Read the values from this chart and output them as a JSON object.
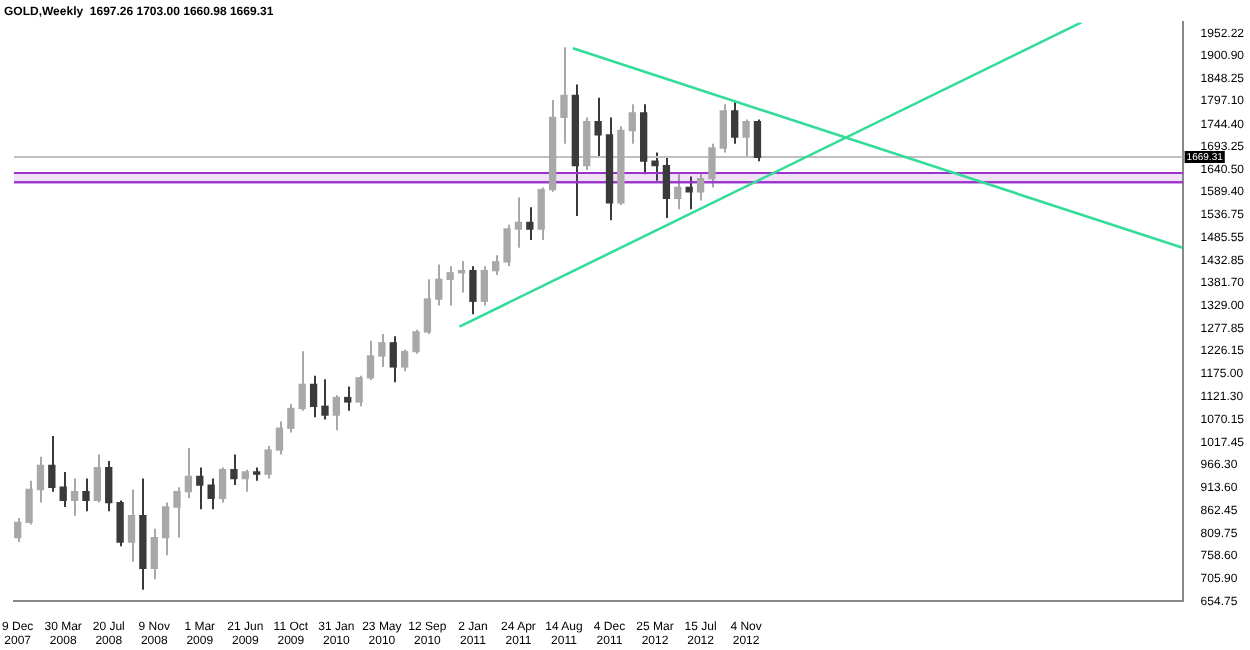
{
  "chart_data": {
    "type": "candlestick",
    "title": "GOLD,Weekly  1697.26 1703.00 1660.98 1669.31",
    "colors": [
      "#a8a8a8",
      "#a8a8a8",
      "#a8a8a8",
      "#3a3a3a",
      "#3a3a3a",
      "#a8a8a8",
      "#3a3a3a",
      "#a8a8a8",
      "#3a3a3a",
      "#3a3a3a",
      "#a8a8a8",
      "#3a3a3a",
      "#a8a8a8",
      "#a8a8a8",
      "#a8a8a8",
      "#a8a8a8",
      "#3a3a3a",
      "#3a3a3a",
      "#a8a8a8",
      "#3a3a3a",
      "#a8a8a8",
      "#3a3a3a",
      "#a8a8a8",
      "#a8a8a8",
      "#a8a8a8",
      "#a8a8a8",
      "#3a3a3a",
      "#3a3a3a",
      "#a8a8a8",
      "#3a3a3a",
      "#a8a8a8",
      "#a8a8a8",
      "#a8a8a8",
      "#3a3a3a",
      "#a8a8a8",
      "#a8a8a8",
      "#a8a8a8",
      "#a8a8a8",
      "#a8a8a8",
      "#a8a8a8",
      "#3a3a3a",
      "#a8a8a8",
      "#a8a8a8",
      "#a8a8a8",
      "#a8a8a8",
      "#3a3a3a",
      "#a8a8a8",
      "#a8a8a8",
      "#a8a8a8",
      "#3a3a3a",
      "#a8a8a8",
      "#3a3a3a",
      "#3a3a3a",
      "#a8a8a8",
      "#a8a8a8",
      "#3a3a3a",
      "#3a3a3a",
      "#3a3a3a",
      "#a8a8a8",
      "#3a3a3a",
      "#a8a8a8",
      "#a8a8a8",
      "#a8a8a8",
      "#3a3a3a",
      "#a8a8a8",
      "#3a3a3a"
    ],
    "x": [
      "2007-12-09",
      "2008-01-06",
      "2008-02-03",
      "2008-03-02",
      "2008-03-30",
      "2008-04-27",
      "2008-05-25",
      "2008-06-22",
      "2008-07-20",
      "2008-08-17",
      "2008-09-14",
      "2008-10-12",
      "2008-11-09",
      "2008-12-07",
      "2009-01-04",
      "2009-02-01",
      "2009-03-01",
      "2009-03-29",
      "2009-04-26",
      "2009-05-24",
      "2009-06-21",
      "2009-07-19",
      "2009-08-16",
      "2009-09-13",
      "2009-10-11",
      "2009-11-08",
      "2009-12-06",
      "2010-01-03",
      "2010-01-31",
      "2010-02-28",
      "2010-03-28",
      "2010-04-25",
      "2010-05-23",
      "2010-06-20",
      "2010-07-18",
      "2010-08-15",
      "2010-09-12",
      "2010-10-10",
      "2010-11-07",
      "2010-12-05",
      "2011-01-02",
      "2011-01-30",
      "2011-02-27",
      "2011-03-27",
      "2011-04-24",
      "2011-05-22",
      "2011-06-19",
      "2011-07-17",
      "2011-08-14",
      "2011-09-11",
      "2011-10-09",
      "2011-11-06",
      "2011-12-04",
      "2012-01-01",
      "2012-01-29",
      "2012-02-26",
      "2012-03-25",
      "2012-04-22",
      "2012-05-20",
      "2012-06-17",
      "2012-07-15",
      "2012-08-12",
      "2012-09-09",
      "2012-10-07",
      "2012-11-04",
      "2012-12-02"
    ],
    "ohlc": [
      [
        800,
        845,
        790,
        835
      ],
      [
        835,
        930,
        830,
        910
      ],
      [
        910,
        985,
        880,
        965
      ],
      [
        965,
        1032,
        905,
        915
      ],
      [
        915,
        950,
        870,
        885
      ],
      [
        885,
        935,
        850,
        905
      ],
      [
        905,
        935,
        860,
        885
      ],
      [
        885,
        990,
        880,
        960
      ],
      [
        960,
        975,
        860,
        880
      ],
      [
        880,
        885,
        780,
        790
      ],
      [
        790,
        910,
        745,
        850
      ],
      [
        850,
        935,
        681,
        730
      ],
      [
        730,
        820,
        705,
        800
      ],
      [
        800,
        880,
        760,
        870
      ],
      [
        870,
        915,
        800,
        905
      ],
      [
        905,
        1005,
        890,
        940
      ],
      [
        940,
        960,
        865,
        920
      ],
      [
        920,
        935,
        865,
        890
      ],
      [
        890,
        960,
        880,
        955
      ],
      [
        955,
        990,
        920,
        935
      ],
      [
        935,
        955,
        905,
        950
      ],
      [
        950,
        960,
        930,
        945
      ],
      [
        945,
        1010,
        935,
        1000
      ],
      [
        1000,
        1065,
        990,
        1050
      ],
      [
        1050,
        1105,
        1040,
        1095
      ],
      [
        1095,
        1226,
        1090,
        1150
      ],
      [
        1150,
        1170,
        1075,
        1100
      ],
      [
        1100,
        1162,
        1070,
        1080
      ],
      [
        1080,
        1125,
        1045,
        1120
      ],
      [
        1120,
        1145,
        1090,
        1110
      ],
      [
        1110,
        1170,
        1100,
        1165
      ],
      [
        1165,
        1250,
        1160,
        1215
      ],
      [
        1215,
        1265,
        1190,
        1245
      ],
      [
        1245,
        1260,
        1155,
        1190
      ],
      [
        1190,
        1230,
        1180,
        1225
      ],
      [
        1225,
        1275,
        1220,
        1270
      ],
      [
        1270,
        1390,
        1265,
        1345
      ],
      [
        1345,
        1424,
        1330,
        1390
      ],
      [
        1390,
        1420,
        1330,
        1405
      ],
      [
        1405,
        1432,
        1360,
        1410
      ],
      [
        1410,
        1420,
        1310,
        1340
      ],
      [
        1340,
        1420,
        1330,
        1410
      ],
      [
        1410,
        1445,
        1400,
        1430
      ],
      [
        1430,
        1515,
        1420,
        1505
      ],
      [
        1505,
        1577,
        1462,
        1520
      ],
      [
        1520,
        1555,
        1480,
        1505
      ],
      [
        1505,
        1600,
        1480,
        1595
      ],
      [
        1595,
        1800,
        1590,
        1760
      ],
      [
        1760,
        1920,
        1700,
        1810
      ],
      [
        1810,
        1835,
        1535,
        1650
      ],
      [
        1650,
        1760,
        1640,
        1750
      ],
      [
        1750,
        1805,
        1670,
        1720
      ],
      [
        1720,
        1760,
        1525,
        1565
      ],
      [
        1565,
        1740,
        1560,
        1730
      ],
      [
        1730,
        1790,
        1700,
        1770
      ],
      [
        1770,
        1790,
        1630,
        1660
      ],
      [
        1660,
        1680,
        1615,
        1650
      ],
      [
        1650,
        1670,
        1530,
        1575
      ],
      [
        1575,
        1630,
        1550,
        1600
      ],
      [
        1600,
        1625,
        1550,
        1590
      ],
      [
        1590,
        1630,
        1570,
        1620
      ],
      [
        1620,
        1700,
        1600,
        1690
      ],
      [
        1690,
        1790,
        1680,
        1775
      ],
      [
        1775,
        1796,
        1700,
        1715
      ],
      [
        1715,
        1755,
        1670,
        1750
      ],
      [
        1750,
        1755,
        1660,
        1669
      ]
    ],
    "series": [
      {
        "type": "line",
        "color": "#33dd99",
        "x": [
          "2011-09-05",
          "2015-10-14"
        ],
        "values": [
          1918,
          1462
        ]
      },
      {
        "type": "line",
        "color": "#33dd99",
        "x": [
          "2010-11-30",
          "2015-02-07"
        ],
        "values": [
          1282,
          1977
        ]
      }
    ],
    "xlim": [
      "2007-11-30",
      "2015-10-14"
    ],
    "xticks": [
      {
        "value": "2007-12-09",
        "label": "9 Dec 2007"
      },
      {
        "value": "2008-03-30",
        "label": "30 Mar 2008"
      },
      {
        "value": "2008-07-20",
        "label": "20 Jul 2008"
      },
      {
        "value": "2008-11-09",
        "label": "9 Nov 2008"
      },
      {
        "value": "2009-03-01",
        "label": "1 Mar 2009"
      },
      {
        "value": "2009-06-21",
        "label": "21 Jun 2009"
      },
      {
        "value": "2009-10-11",
        "label": "11 Oct 2009"
      },
      {
        "value": "2010-01-31",
        "label": "31 Jan 2010"
      },
      {
        "value": "2010-05-23",
        "label": "23 May 2010"
      },
      {
        "value": "2010-09-12",
        "label": "12 Sep 2010"
      },
      {
        "value": "2011-01-02",
        "label": "2 Jan 2011"
      },
      {
        "value": "2011-04-24",
        "label": "24 Apr 2011"
      },
      {
        "value": "2011-08-14",
        "label": "14 Aug 2011"
      },
      {
        "value": "2011-12-04",
        "label": "4 Dec 2011"
      },
      {
        "value": "2012-03-25",
        "label": "25 Mar 2012"
      },
      {
        "value": "2012-07-15",
        "label": "15 Jul 2012"
      },
      {
        "value": "2012-11-04",
        "label": "4 Nov 2012"
      }
    ],
    "ylim": [
      654.75,
      1977
    ],
    "yticks": [
      {
        "value": 654.75,
        "label": "654.75"
      },
      {
        "value": 705.9,
        "label": "705.90"
      },
      {
        "value": 758.6,
        "label": "758.60"
      },
      {
        "value": 809.75,
        "label": "809.75"
      },
      {
        "value": 862.45,
        "label": "862.45"
      },
      {
        "value": 913.6,
        "label": "913.60"
      },
      {
        "value": 966.3,
        "label": "966.30"
      },
      {
        "value": 1017.45,
        "label": "1017.45"
      },
      {
        "value": 1070.15,
        "label": "1070.15"
      },
      {
        "value": 1121.3,
        "label": "1121.30"
      },
      {
        "value": 1175,
        "label": "1175.00"
      },
      {
        "value": 1226.15,
        "label": "1226.15"
      },
      {
        "value": 1277.85,
        "label": "1277.85"
      },
      {
        "value": 1329,
        "label": "1329.00"
      },
      {
        "value": 1381.7,
        "label": "1381.70"
      },
      {
        "value": 1432.85,
        "label": "1432.85"
      },
      {
        "value": 1485.55,
        "label": "1485.55"
      },
      {
        "value": 1536.75,
        "label": "1536.75"
      },
      {
        "value": 1589.4,
        "label": "1589.40"
      },
      {
        "value": 1640.5,
        "label": "1640.50"
      },
      {
        "value": 1693.25,
        "label": "1693.25"
      },
      {
        "value": 1744.4,
        "label": "1744.40"
      },
      {
        "value": 1797.1,
        "label": "1797.10"
      },
      {
        "value": 1848.25,
        "label": "1848.25"
      },
      {
        "value": 1900.9,
        "label": "1900.90"
      },
      {
        "value": 1952.22,
        "label": "1952.22"
      }
    ],
    "ref_lines": [
      {
        "axis": "y",
        "value": 1669.31,
        "label": "1669.31",
        "color": "#c0c0c0"
      },
      {
        "axis": "y",
        "value": 1632.8,
        "color": "#9933cc"
      },
      {
        "axis": "y",
        "value": 1611.9,
        "color": "#9933cc"
      }
    ],
    "bands": [
      {
        "axis": "y",
        "from": 1611.9,
        "to": 1632.8,
        "color": "#9933cc"
      }
    ]
  }
}
